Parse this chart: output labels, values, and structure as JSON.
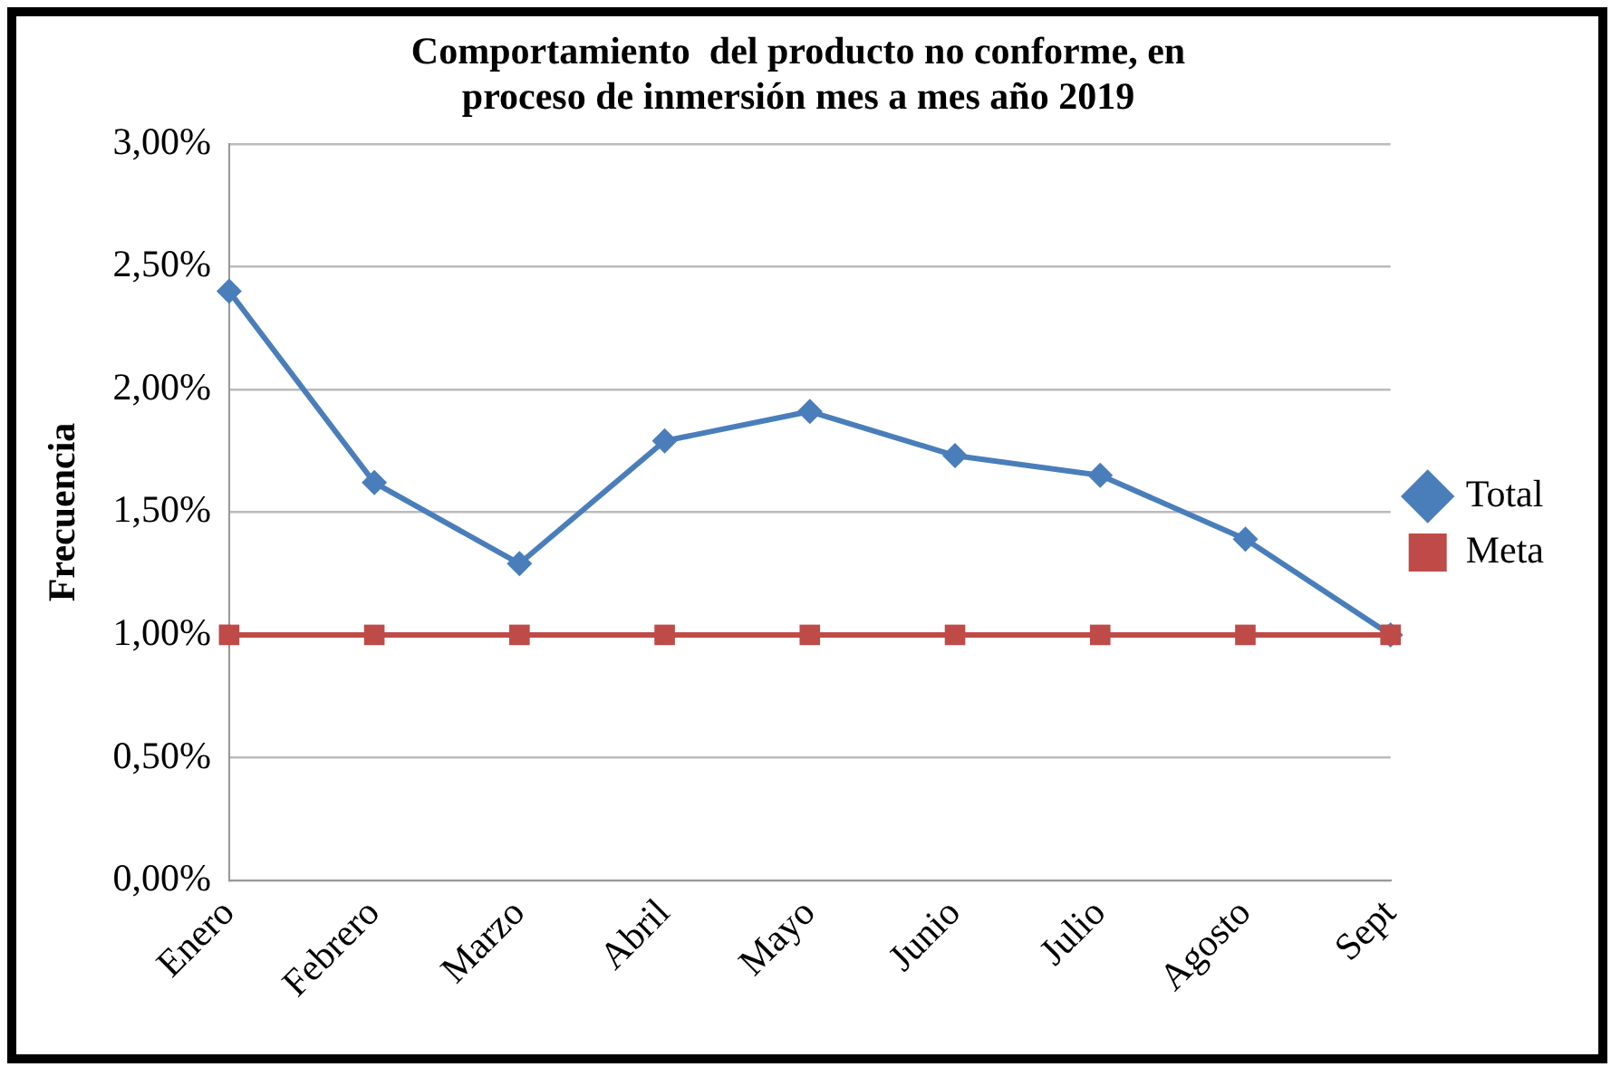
{
  "chart_data": {
    "type": "line",
    "title": [
      "Comportamiento  del producto no conforme, en",
      "proceso de inmersión mes a mes año 2019"
    ],
    "ylabel": "Frecuencia",
    "categories": [
      "Enero",
      "Febrero",
      "Marzo",
      "Abril",
      "Mayo",
      "Junio",
      "Julio",
      "Agosto",
      "Sept"
    ],
    "series": [
      {
        "name": "Total",
        "color": "#4a7ebb",
        "marker": "diamond",
        "values": [
          2.4,
          1.62,
          1.29,
          1.79,
          1.91,
          1.73,
          1.65,
          1.39,
          1.0
        ]
      },
      {
        "name": "Meta",
        "color": "#be4b48",
        "marker": "square",
        "values": [
          1.0,
          1.0,
          1.0,
          1.0,
          1.0,
          1.0,
          1.0,
          1.0,
          1.0
        ]
      }
    ],
    "ylim": [
      0,
      3
    ],
    "yticks": [
      {
        "value": 0,
        "label": "0,00%"
      },
      {
        "value": 0.5,
        "label": "0,50%"
      },
      {
        "value": 1,
        "label": "1,00%"
      },
      {
        "value": 1.5,
        "label": "1,50%"
      },
      {
        "value": 2,
        "label": "2,00%"
      },
      {
        "value": 2.5,
        "label": "2,50%"
      },
      {
        "value": 3,
        "label": "3,00%"
      }
    ],
    "grid": "y",
    "legend": "right"
  }
}
